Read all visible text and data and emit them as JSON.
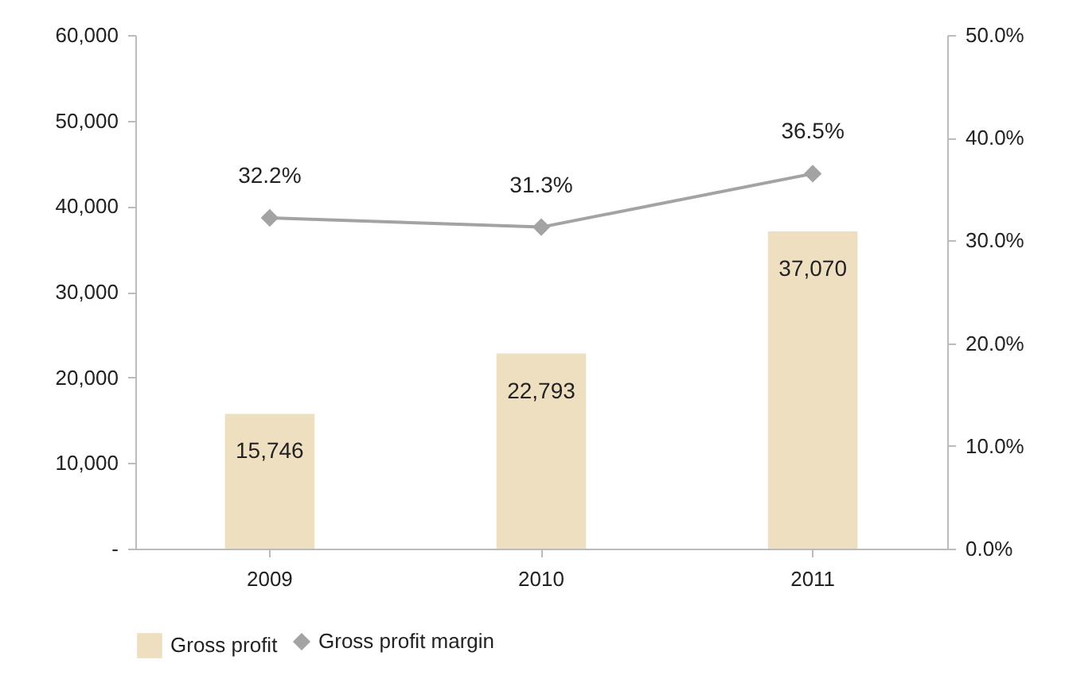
{
  "chart_data": {
    "type": "bar",
    "categories": [
      "2009",
      "2010",
      "2011"
    ],
    "series": [
      {
        "name": "Gross profit",
        "color": "#efdfc1",
        "values": [
          15746,
          22793,
          37070
        ],
        "value_labels": [
          "15,746",
          "22,793",
          "37,070"
        ]
      },
      {
        "name": "Gross profit margin",
        "type": "line",
        "axis": "y2",
        "color": "#a3a3a3",
        "values": [
          32.2,
          31.3,
          36.5
        ],
        "value_labels": [
          "32.2%",
          "31.3%",
          "36.5%"
        ]
      }
    ],
    "ylim": [
      0,
      60000
    ],
    "yticks": [
      {
        "value": 0,
        "label": "-"
      },
      {
        "value": 10000,
        "label": "10,000"
      },
      {
        "value": 20000,
        "label": "20,000"
      },
      {
        "value": 30000,
        "label": "30,000"
      },
      {
        "value": 40000,
        "label": "40,000"
      },
      {
        "value": 50000,
        "label": "50,000"
      },
      {
        "value": 60000,
        "label": "60,000"
      }
    ],
    "y2lim": [
      0,
      50
    ],
    "y2ticks": [
      {
        "value": 0,
        "label": "0.0%"
      },
      {
        "value": 10,
        "label": "10.0%"
      },
      {
        "value": 20,
        "label": "20.0%"
      },
      {
        "value": 30,
        "label": "30.0%"
      },
      {
        "value": 40,
        "label": "40.0%"
      },
      {
        "value": 50,
        "label": "50.0%"
      }
    ],
    "legend": "bottom",
    "marker": "diamond"
  }
}
